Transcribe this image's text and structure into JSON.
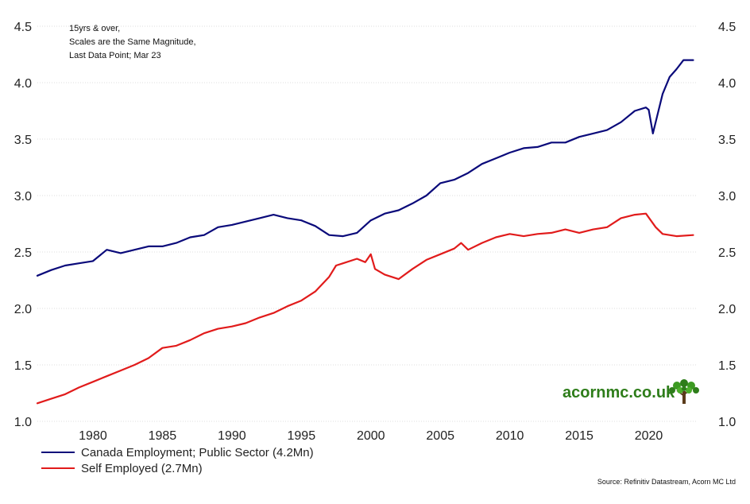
{
  "notes": [
    "15yrs & over,",
    "Scales are the Same Magnitude,",
    "Last Data Point; Mar 23"
  ],
  "source": "Source: Refinitiv Datastream, Acorn MC Ltd",
  "brand": {
    "text": "acornmc.co.uk",
    "icon": "tree-icon",
    "color": "#2e7d1a"
  },
  "colors": {
    "series1": "#0a0a7a",
    "series2": "#e11b1b",
    "grid": "#dddddd"
  },
  "chart_data": {
    "type": "line",
    "title": "",
    "xlabel": "",
    "ylabel": "",
    "xlim": [
      1976.0,
      2023.4
    ],
    "ylim": [
      1.0,
      4.5
    ],
    "yticks_left": [
      "1.0",
      "1.5",
      "2.0",
      "2.5",
      "3.0",
      "3.5",
      "4.0",
      "4.5"
    ],
    "yticks_right": [
      "1.0",
      "1.5",
      "2.0",
      "2.5",
      "3.0",
      "3.5",
      "4.0",
      "4.5"
    ],
    "xticks": [
      "1980",
      "1985",
      "1990",
      "1995",
      "2000",
      "2005",
      "2010",
      "2015",
      "2020"
    ],
    "grid": "horizontal dotted",
    "legend_position": "bottom-left",
    "series": [
      {
        "name": "Canada Employment; Public Sector (4.2Mn)",
        "x": [
          1976.0,
          1977.0,
          1978.0,
          1979.0,
          1980.0,
          1981.0,
          1982.0,
          1983.0,
          1984.0,
          1985.0,
          1986.0,
          1987.0,
          1988.0,
          1989.0,
          1990.0,
          1991.0,
          1992.0,
          1993.0,
          1994.0,
          1995.0,
          1996.0,
          1997.0,
          1998.0,
          1999.0,
          2000.0,
          2001.0,
          2002.0,
          2003.0,
          2004.0,
          2005.0,
          2006.0,
          2007.0,
          2008.0,
          2009.0,
          2010.0,
          2011.0,
          2012.0,
          2013.0,
          2014.0,
          2015.0,
          2016.0,
          2017.0,
          2018.0,
          2019.0,
          2019.8,
          2020.0,
          2020.3,
          2020.6,
          2021.0,
          2021.5,
          2022.0,
          2022.5,
          2023.2
        ],
        "values": [
          2.29,
          2.34,
          2.38,
          2.4,
          2.42,
          2.52,
          2.49,
          2.52,
          2.55,
          2.55,
          2.58,
          2.63,
          2.65,
          2.72,
          2.74,
          2.77,
          2.8,
          2.83,
          2.8,
          2.78,
          2.73,
          2.65,
          2.64,
          2.67,
          2.78,
          2.84,
          2.87,
          2.93,
          3.0,
          3.11,
          3.14,
          3.2,
          3.28,
          3.33,
          3.38,
          3.42,
          3.43,
          3.47,
          3.47,
          3.52,
          3.55,
          3.58,
          3.65,
          3.75,
          3.78,
          3.76,
          3.55,
          3.7,
          3.9,
          4.05,
          4.12,
          4.2,
          4.2
        ]
      },
      {
        "name": "Self Employed (2.7Mn)",
        "x": [
          1976.0,
          1977.0,
          1978.0,
          1979.0,
          1980.0,
          1981.0,
          1982.0,
          1983.0,
          1984.0,
          1985.0,
          1986.0,
          1987.0,
          1988.0,
          1989.0,
          1990.0,
          1991.0,
          1992.0,
          1993.0,
          1994.0,
          1995.0,
          1996.0,
          1997.0,
          1997.5,
          1998.0,
          1999.0,
          1999.6,
          2000.0,
          2000.3,
          2001.0,
          2002.0,
          2003.0,
          2004.0,
          2005.0,
          2006.0,
          2006.5,
          2007.0,
          2008.0,
          2009.0,
          2010.0,
          2011.0,
          2012.0,
          2013.0,
          2014.0,
          2015.0,
          2016.0,
          2017.0,
          2018.0,
          2019.0,
          2019.8,
          2020.5,
          2021.0,
          2022.0,
          2023.2
        ],
        "values": [
          1.16,
          1.2,
          1.24,
          1.3,
          1.35,
          1.4,
          1.45,
          1.5,
          1.56,
          1.65,
          1.67,
          1.72,
          1.78,
          1.82,
          1.84,
          1.87,
          1.92,
          1.96,
          2.02,
          2.07,
          2.15,
          2.28,
          2.38,
          2.4,
          2.44,
          2.41,
          2.48,
          2.35,
          2.3,
          2.26,
          2.35,
          2.43,
          2.48,
          2.53,
          2.58,
          2.52,
          2.58,
          2.63,
          2.66,
          2.64,
          2.66,
          2.67,
          2.7,
          2.67,
          2.7,
          2.72,
          2.8,
          2.83,
          2.84,
          2.72,
          2.66,
          2.64,
          2.65
        ]
      }
    ]
  }
}
